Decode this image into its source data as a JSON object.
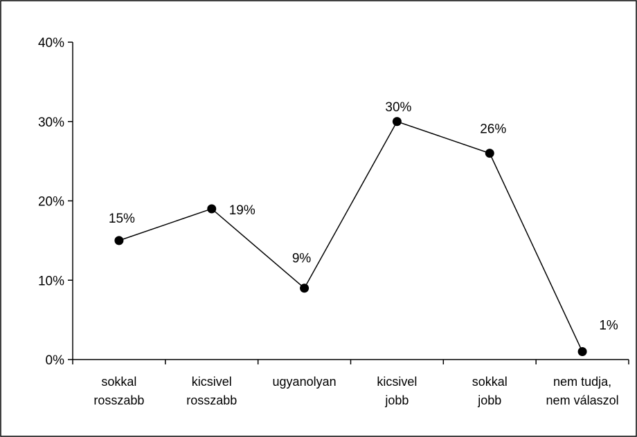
{
  "chart_data": {
    "type": "line",
    "categories": [
      [
        "sokkal",
        "rosszabb"
      ],
      [
        "kicsivel",
        "rosszabb"
      ],
      [
        "ugyanolyan"
      ],
      [
        "kicsivel",
        "jobb"
      ],
      [
        "sokkal",
        "jobb"
      ],
      [
        "nem tudja,",
        "nem válaszol"
      ]
    ],
    "values": [
      15,
      19,
      9,
      30,
      26,
      1
    ],
    "data_labels": [
      "15%",
      "19%",
      "9%",
      "30%",
      "26%",
      "1%"
    ],
    "yticks": [
      0,
      10,
      20,
      30,
      40
    ],
    "ytick_labels": [
      "0%",
      "10%",
      "20%",
      "30%",
      "40%"
    ],
    "ylim": [
      0,
      40
    ],
    "grid": false,
    "legend": "none",
    "line_color": "#000000",
    "border_color": "#000000"
  }
}
